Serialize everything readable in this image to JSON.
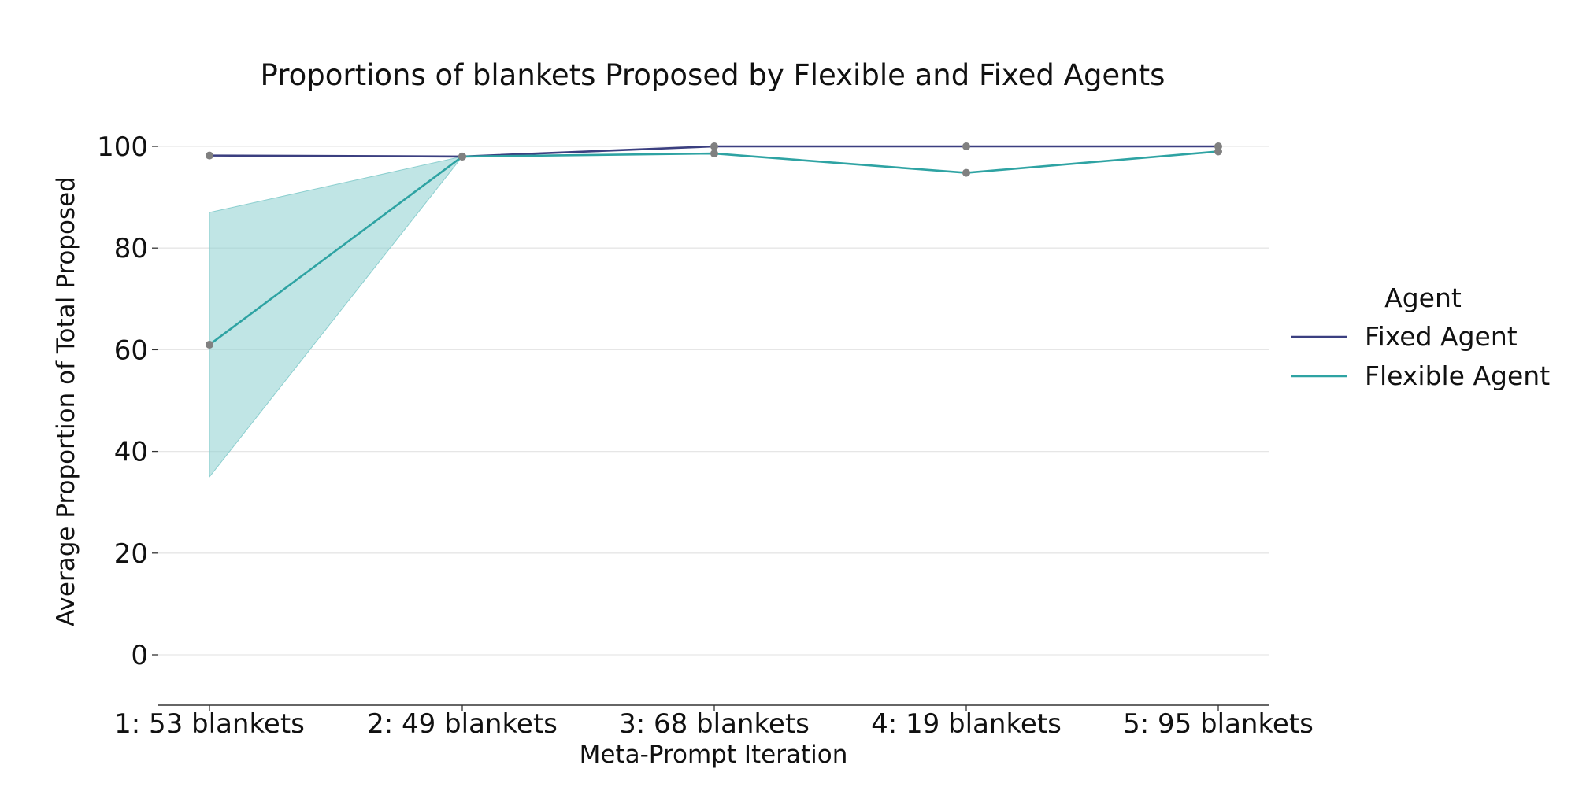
{
  "chart_data": {
    "type": "line",
    "title": "Proportions of blankets Proposed by Flexible and Fixed Agents",
    "xlabel": "Meta-Prompt Iteration",
    "ylabel": "Average Proportion of Total Proposed",
    "categories": [
      "1: 53 blankets",
      "2: 49 blankets",
      "3: 68 blankets",
      "4: 19 blankets",
      "5: 95 blankets"
    ],
    "ylim": [
      -10,
      107
    ],
    "yticks": [
      0,
      20,
      40,
      60,
      80,
      100
    ],
    "grid": true,
    "legend": {
      "title": "Agent",
      "placement": "right"
    },
    "series": [
      {
        "name": "Fixed Agent",
        "color": "#3b3f80",
        "values": [
          98.2,
          98.0,
          100.0,
          100.0,
          100.0
        ]
      },
      {
        "name": "Flexible Agent",
        "color": "#2ea3a3",
        "band_color": "#8ccfcf",
        "values": [
          61.0,
          98.0,
          98.6,
          94.8,
          99.0
        ],
        "ci_lower": [
          35.0,
          98.0,
          98.6,
          94.8,
          99.0
        ],
        "ci_upper": [
          87.0,
          98.0,
          98.6,
          94.8,
          99.0
        ]
      }
    ],
    "marker_color": "#808080"
  }
}
